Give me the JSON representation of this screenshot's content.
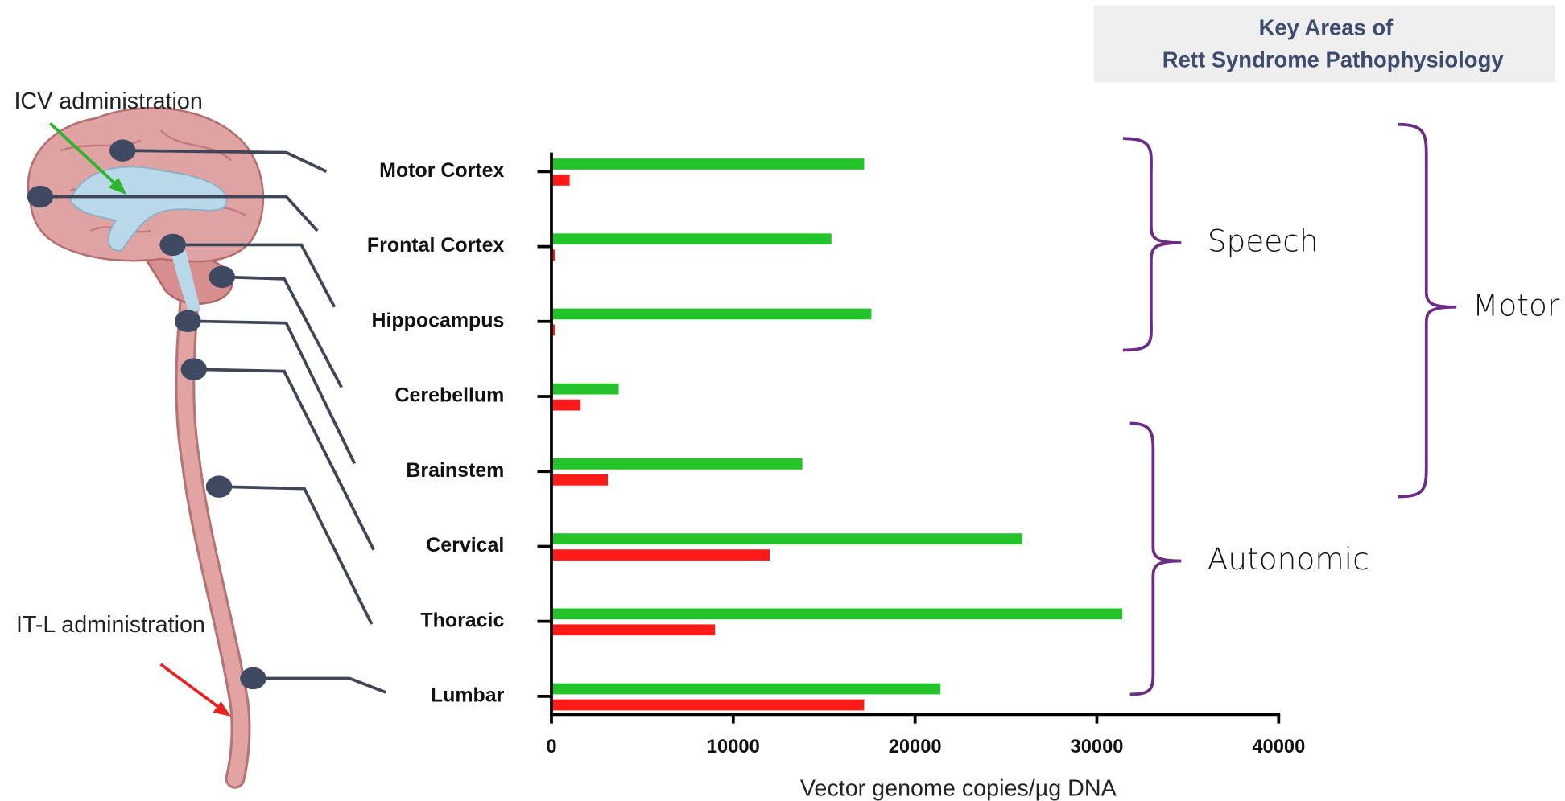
{
  "chart_data": {
    "type": "bar",
    "orientation": "horizontal",
    "title": [
      "Key Areas of",
      "Rett Syndrome Pathophysiology"
    ],
    "categories": [
      "Motor Cortex",
      "Frontal Cortex",
      "Hippocampus",
      "Cerebellum",
      "Brainstem",
      "Cervical",
      "Thoracic",
      "Lumbar"
    ],
    "series": [
      {
        "color": "#22c42a",
        "values": [
          17200,
          15400,
          17600,
          3700,
          13800,
          25900,
          31400,
          21400
        ]
      },
      {
        "color": "#ff1a1a",
        "values": [
          1000,
          200,
          200,
          1600,
          3100,
          12000,
          9000,
          17200
        ]
      }
    ],
    "xlim": [
      0,
      40000
    ],
    "xticks": [
      0,
      10000,
      20000,
      30000,
      40000
    ],
    "xlabel": "Vector genome copies/µg DNA",
    "annotations": [
      "ICV administration",
      "IT-L administration"
    ],
    "groups": [
      "Speech",
      "Motor",
      "Autonomic"
    ]
  }
}
